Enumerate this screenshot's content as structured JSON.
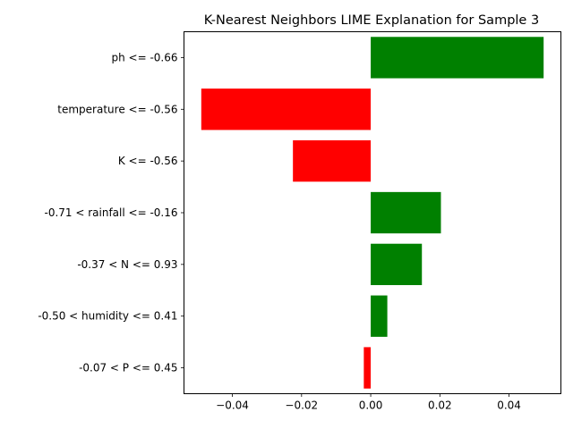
{
  "chart_data": {
    "type": "bar",
    "orientation": "horizontal",
    "title": "K-Nearest Neighbors LIME Explanation for Sample 3",
    "xlabel": "",
    "ylabel": "",
    "categories": [
      "ph <= -0.66",
      "temperature <= -0.56",
      "K <= -0.56",
      "-0.71 < rainfall <= -0.16",
      "-0.37 < N <= 0.93",
      "-0.50 < humidity <= 0.41",
      "-0.07 < P <= 0.45"
    ],
    "values": [
      0.05,
      -0.049,
      -0.0225,
      0.0203,
      0.0148,
      0.0048,
      -0.002
    ],
    "xlim": [
      -0.054,
      0.055
    ],
    "xticks": [
      -0.04,
      -0.02,
      0.0,
      0.02,
      0.04
    ],
    "xtick_labels": [
      "−0.04",
      "−0.02",
      "0.00",
      "0.02",
      "0.04"
    ],
    "grid": false,
    "colors": {
      "positive": "#008000",
      "negative": "#ff0000",
      "axis": "#000000"
    }
  }
}
